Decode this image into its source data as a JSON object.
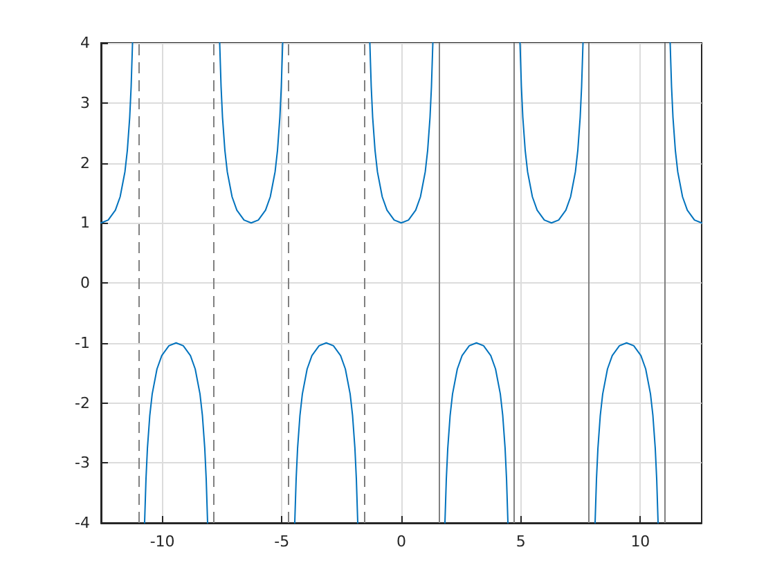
{
  "chart_data": {
    "type": "line",
    "xlim": [
      -12.566,
      12.566
    ],
    "ylim": [
      -4,
      4
    ],
    "xticks": [
      -10,
      -5,
      0,
      5,
      10
    ],
    "yticks": [
      -4,
      -3,
      -2,
      -1,
      0,
      1,
      2,
      3,
      4
    ],
    "grid": true,
    "marker": "none",
    "line_style": "solid",
    "series": [
      {
        "color": "#0072bd",
        "x": [
          -12.566,
          -12.266,
          -11.966,
          -11.766,
          -11.566,
          -11.466,
          -11.366,
          -11.306,
          -11.248,
          -10.996,
          -10.743,
          -10.685,
          -10.625,
          -10.525,
          -10.425,
          -10.225,
          -10.025,
          -9.725,
          -9.425,
          -9.125,
          -8.825,
          -8.625,
          -8.425,
          -8.325,
          -8.225,
          -8.165,
          -8.107,
          -7.854,
          -7.601,
          -7.543,
          -7.483,
          -7.383,
          -7.283,
          -7.083,
          -6.883,
          -6.583,
          -6.283,
          -5.983,
          -5.683,
          -5.483,
          -5.283,
          -5.183,
          -5.083,
          -5.023,
          -4.965,
          -4.712,
          -4.46,
          -4.402,
          -4.342,
          -4.242,
          -4.142,
          -3.942,
          -3.742,
          -3.442,
          -3.142,
          -2.842,
          -2.542,
          -2.342,
          -2.142,
          -2.042,
          -1.942,
          -1.882,
          -1.824,
          -1.571,
          -1.318,
          -1.26,
          -1.2,
          -1.1,
          -1,
          -0.8,
          -0.6,
          -0.3,
          0,
          0.3,
          0.6,
          0.8,
          1,
          1.1,
          1.2,
          1.26,
          1.318,
          1.571,
          1.824,
          1.882,
          1.942,
          2.042,
          2.142,
          2.342,
          2.542,
          2.842,
          3.142,
          3.442,
          3.742,
          3.942,
          4.142,
          4.242,
          4.342,
          4.402,
          4.46,
          4.712,
          4.965,
          5.023,
          5.083,
          5.183,
          5.283,
          5.483,
          5.683,
          5.983,
          6.283,
          6.583,
          6.883,
          7.083,
          7.283,
          7.383,
          7.483,
          7.543,
          7.601,
          7.854,
          8.107,
          8.165,
          8.225,
          8.325,
          8.425,
          8.625,
          8.825,
          9.125,
          9.425,
          9.725,
          10.025,
          10.225,
          10.425,
          10.525,
          10.625,
          10.685,
          10.743,
          10.996,
          11.248,
          11.306,
          11.366,
          11.466,
          11.566,
          11.766,
          11.966,
          12.266,
          12.566
        ],
        "values": [
          1,
          1.047,
          1.212,
          1.435,
          1.851,
          2.205,
          2.76,
          3.27,
          4,
          null,
          -4,
          -3.27,
          -2.76,
          -2.205,
          -1.851,
          -1.435,
          -1.212,
          -1.047,
          -1,
          -1.047,
          -1.212,
          -1.435,
          -1.851,
          -2.205,
          -2.76,
          -3.27,
          -4,
          null,
          4,
          3.27,
          2.76,
          2.205,
          1.851,
          1.435,
          1.212,
          1.047,
          1,
          1.047,
          1.212,
          1.435,
          1.851,
          2.205,
          2.76,
          3.27,
          4,
          null,
          -4,
          -3.27,
          -2.76,
          -2.205,
          -1.851,
          -1.435,
          -1.212,
          -1.047,
          -1,
          -1.047,
          -1.212,
          -1.435,
          -1.851,
          -2.205,
          -2.76,
          -3.27,
          -4,
          null,
          4,
          3.27,
          2.76,
          2.205,
          1.851,
          1.435,
          1.212,
          1.047,
          1,
          1.047,
          1.212,
          1.435,
          1.851,
          2.205,
          2.76,
          3.27,
          4,
          null,
          -4,
          -3.27,
          -2.76,
          -2.205,
          -1.851,
          -1.435,
          -1.212,
          -1.047,
          -1,
          -1.047,
          -1.212,
          -1.435,
          -1.851,
          -2.205,
          -2.76,
          -3.27,
          -4,
          null,
          4,
          3.27,
          2.76,
          2.205,
          1.851,
          1.435,
          1.212,
          1.047,
          1,
          1.047,
          1.212,
          1.435,
          1.851,
          2.205,
          2.76,
          3.27,
          4,
          null,
          -4,
          -3.27,
          -2.76,
          -2.205,
          -1.851,
          -1.435,
          -1.212,
          -1.047,
          -1,
          -1.047,
          -1.212,
          -1.435,
          -1.851,
          -2.205,
          -2.76,
          -3.27,
          -4,
          null,
          4,
          3.27,
          2.76,
          2.205,
          1.851,
          1.435,
          1.212,
          1.047,
          1
        ]
      }
    ],
    "ref_lines": [
      {
        "axis": "x",
        "value": -10.996,
        "color": "#808080",
        "line_style": "dashed"
      },
      {
        "axis": "x",
        "value": -7.854,
        "color": "#808080",
        "line_style": "dashed"
      },
      {
        "axis": "x",
        "value": -4.712,
        "color": "#808080",
        "line_style": "dashed"
      },
      {
        "axis": "x",
        "value": -1.571,
        "color": "#808080",
        "line_style": "dashed"
      },
      {
        "axis": "x",
        "value": 1.571,
        "color": "#808080",
        "line_style": "solid"
      },
      {
        "axis": "x",
        "value": 4.712,
        "color": "#808080",
        "line_style": "solid"
      },
      {
        "axis": "x",
        "value": 7.854,
        "color": "#808080",
        "line_style": "solid"
      },
      {
        "axis": "x",
        "value": 10.996,
        "color": "#808080",
        "line_style": "solid"
      }
    ]
  }
}
